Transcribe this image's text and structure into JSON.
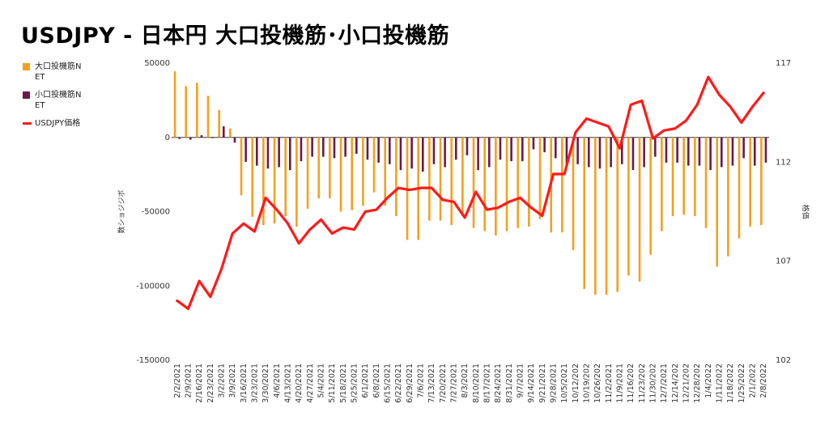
{
  "title": "USDJPY - 日本円 大口投機筋･小口投機筋",
  "legend": [
    {
      "label": "大口投機筋NET",
      "color": "#f4a01f",
      "kind": "bar"
    },
    {
      "label": "小口投機筋NET",
      "color": "#6b1a48",
      "kind": "bar"
    },
    {
      "label": "USDJPY価格",
      "color": "#ff1a1a",
      "kind": "line"
    }
  ],
  "chart_data": {
    "type": "bar",
    "title": "USDJPY - 日本円 大口投機筋･小口投機筋",
    "ylabel": "数ショジジボ",
    "y2label": "格価",
    "ylim": [
      -150000,
      50000
    ],
    "y2lim": [
      102,
      117
    ],
    "yticks": [
      50000,
      0,
      -50000,
      -100000,
      -150000
    ],
    "y2ticks": [
      117,
      112,
      107,
      102
    ],
    "grid": false,
    "legend_position": "left",
    "categories": [
      "2/2/2021",
      "2/9/2021",
      "2/16/2021",
      "2/23/2021",
      "3/2/2021",
      "3/9/2021",
      "3/16/2021",
      "3/23/2021",
      "3/30/2021",
      "4/6/2021",
      "4/13/2021",
      "4/20/2021",
      "4/27/2021",
      "5/4/2021",
      "5/11/2021",
      "5/18/2021",
      "5/25/2021",
      "6/1/2021",
      "6/8/2021",
      "6/15/2021",
      "6/22/2021",
      "6/29/2021",
      "7/6/2021",
      "7/13/2021",
      "7/20/2021",
      "7/27/2021",
      "8/3/2021",
      "8/10/2021",
      "8/17/2021",
      "8/24/2021",
      "8/31/2021",
      "9/7/2021",
      "9/14/2021",
      "9/21/2021",
      "9/28/2021",
      "10/5/2021",
      "10/12/202",
      "10/19/202",
      "10/26/202",
      "11/2/2021",
      "11/9/2021",
      "11/16/202",
      "11/23/202",
      "11/30/202",
      "12/7/2021",
      "12/14/202",
      "12/21/202",
      "12/28/202",
      "1/4/2022",
      "1/11/2022",
      "1/18/2022",
      "1/25/2022",
      "2/1/2022",
      "2/8/2022"
    ],
    "xtick_every": 1,
    "series": [
      {
        "name": "大口投機筋NET",
        "axis": "left",
        "kind": "bar",
        "values": [
          44500,
          34500,
          36800,
          28000,
          18500,
          6000,
          -39000,
          -53500,
          -59000,
          -58000,
          -53000,
          -60000,
          -48000,
          -41000,
          -41000,
          -50000,
          -49000,
          -46000,
          -37000,
          -46000,
          -53000,
          -69000,
          -69000,
          -56000,
          -56000,
          -59000,
          -53000,
          -61000,
          -63000,
          -66000,
          -63000,
          -61000,
          -60000,
          -55000,
          -64000,
          -64000,
          -76000,
          -102000,
          -106000,
          -106000,
          -104000,
          -93000,
          -97000,
          -79000,
          -63000,
          -53000,
          -52000,
          -53000,
          -61000,
          -87000,
          -80000,
          -68000,
          -60000,
          -59000
        ]
      },
      {
        "name": "小口投機筋NET",
        "axis": "left",
        "kind": "bar",
        "values": [
          -1000,
          -1500,
          1500,
          -500,
          7500,
          -3500,
          -16500,
          -19000,
          -21000,
          -20000,
          -22000,
          -16000,
          -13000,
          -13000,
          -14000,
          -13000,
          -11000,
          -15000,
          -17000,
          -18000,
          -22000,
          -21000,
          -23000,
          -18000,
          -20000,
          -15000,
          -12000,
          -22000,
          -20000,
          -15000,
          -16000,
          -16000,
          -8000,
          -10000,
          -14000,
          -18000,
          -18000,
          -20000,
          -21000,
          -20000,
          -18000,
          -22000,
          -20000,
          -13000,
          -17000,
          -17000,
          -19000,
          -19000,
          -22000,
          -20000,
          -19000,
          -14000,
          -19000,
          -17000
        ]
      },
      {
        "name": "USDJPY価格",
        "axis": "right",
        "kind": "line",
        "values": [
          105.0,
          104.6,
          106.0,
          105.2,
          106.6,
          108.4,
          108.9,
          108.5,
          110.2,
          109.6,
          108.9,
          107.9,
          108.6,
          109.1,
          108.4,
          108.7,
          108.6,
          109.5,
          109.6,
          110.2,
          110.7,
          110.6,
          110.7,
          110.7,
          110.1,
          110.0,
          109.2,
          110.5,
          109.6,
          109.7,
          110.0,
          110.2,
          109.7,
          109.3,
          111.4,
          111.4,
          113.5,
          114.2,
          114.0,
          113.8,
          112.7,
          114.9,
          115.1,
          113.2,
          113.6,
          113.7,
          114.1,
          114.9,
          116.3,
          115.4,
          114.8,
          114.0,
          114.8,
          115.5
        ]
      }
    ]
  }
}
